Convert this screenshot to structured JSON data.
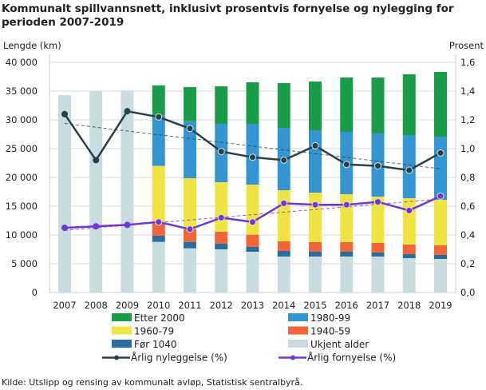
{
  "chart_data": {
    "type": "bar+line",
    "title": "Kommunalt spillvannsnett, inklusivt prosentvis fornyelse og nylegging for perioden 2007-2019",
    "ylabel_left": "Lengde  (km)",
    "ylabel_right": "Prosent",
    "ylim_left": [
      0,
      40000
    ],
    "ylim_right": [
      0,
      1.6
    ],
    "yticks_left": [
      "0",
      "5 000",
      "10 000",
      "15 000",
      "20 000",
      "25 000",
      "30 000",
      "35 000",
      "40 000"
    ],
    "yticks_right": [
      "0,0",
      "0,2",
      "0,4",
      "0,6",
      "0,8",
      "1,0",
      "1,2",
      "1,4",
      "1,6"
    ],
    "grid": true,
    "legend_placement": "bottom",
    "categories": [
      "2007",
      "2008",
      "2009",
      "2010",
      "2011",
      "2012",
      "2013",
      "2014",
      "2015",
      "2016",
      "2017",
      "2018",
      "2019"
    ],
    "stacked_series": [
      {
        "name": "Ukjent alder",
        "color": "#c9dde0",
        "values": [
          34300,
          35000,
          35100,
          8800,
          7680,
          7500,
          7080,
          6250,
          6250,
          6250,
          6250,
          5970,
          5830
        ]
      },
      {
        "name": "Før 1040",
        "color": "#246f9e",
        "values": [
          0,
          0,
          0,
          1060,
          1120,
          970,
          840,
          970,
          830,
          830,
          690,
          700,
          700
        ]
      },
      {
        "name": "1940-59",
        "color": "#f26539",
        "values": [
          0,
          0,
          0,
          2220,
          2170,
          2090,
          2120,
          1670,
          1670,
          1670,
          1670,
          1660,
          1660
        ]
      },
      {
        "name": "1960-79",
        "color": "#f0e442",
        "values": [
          0,
          0,
          0,
          9920,
          8890,
          8610,
          8710,
          8890,
          8610,
          8330,
          8060,
          8060,
          7920
        ]
      },
      {
        "name": "1980-99",
        "color": "#3396d3",
        "values": [
          0,
          0,
          0,
          8840,
          9910,
          10130,
          10550,
          10830,
          10830,
          10840,
          10970,
          10970,
          10970
        ]
      },
      {
        "name": "Etter 2000",
        "color": "#1a9d49",
        "values": [
          0,
          0,
          0,
          5160,
          5930,
          6540,
          7230,
          7780,
          8480,
          9440,
          9720,
          10560,
          11250
        ]
      }
    ],
    "line_series": [
      {
        "name": "Årlig nyleggelse (%)",
        "color": "#274247",
        "axis": "right",
        "trendline": true,
        "values": [
          1.24,
          0.92,
          1.26,
          1.22,
          1.14,
          0.98,
          0.94,
          0.92,
          1.02,
          0.89,
          0.88,
          0.85,
          0.97
        ]
      },
      {
        "name": "Årlig fornyelse (%)",
        "color": "#6f38d6",
        "axis": "right",
        "trendline": true,
        "values": [
          0.45,
          0.46,
          0.47,
          0.49,
          0.44,
          0.52,
          0.49,
          0.62,
          0.61,
          0.61,
          0.63,
          0.57,
          0.67
        ]
      }
    ],
    "legend_order": [
      "Etter 2000",
      "1980-99",
      "1960-79",
      "1940-59",
      "Før 1040",
      "Ukjent alder",
      "Årlig nyleggelse (%)",
      "Årlig fornyelse (%)"
    ]
  },
  "source": "Kilde: Utslipp og rensing av kommunalt  avløp, Statistisk sentralbyrå."
}
